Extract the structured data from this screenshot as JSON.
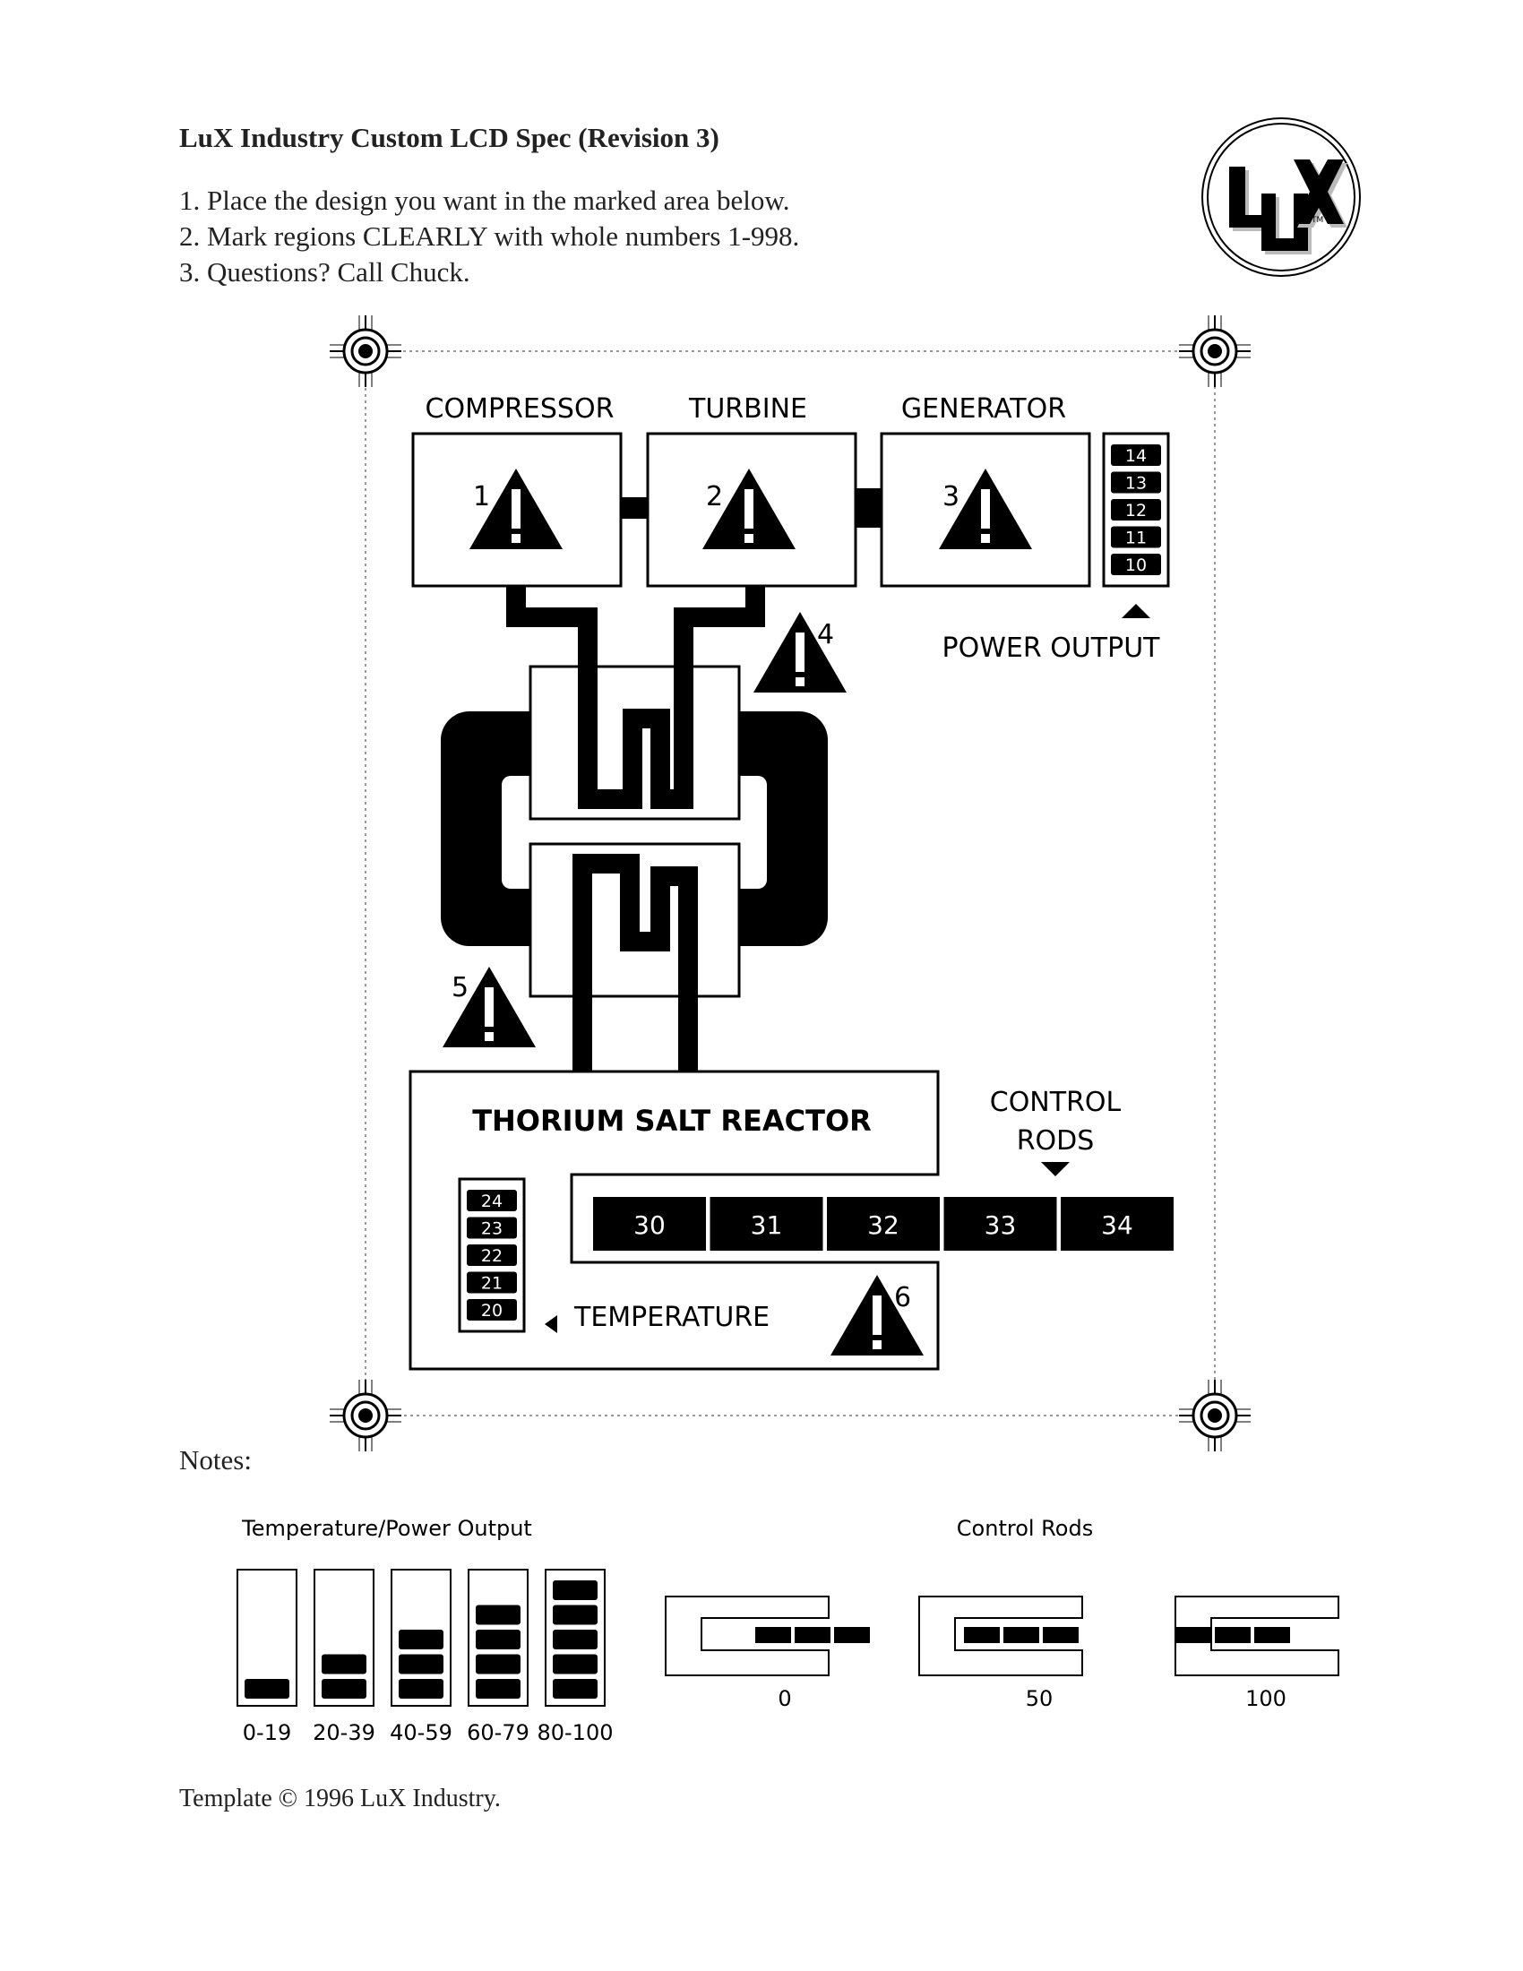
{
  "header": {
    "title": "LuX Industry Custom LCD Spec (Revision 3)",
    "steps": [
      "1. Place the design you want in the marked area below.",
      "2. Mark regions CLEARLY with whole numbers 1-998.",
      "3. Questions? Call Chuck."
    ],
    "logo_text": "LUX",
    "logo_tm": "TM"
  },
  "lcd": {
    "compressor": {
      "label": "COMPRESSOR",
      "region": "1"
    },
    "turbine": {
      "label": "TURBINE",
      "region": "2"
    },
    "generator": {
      "label": "GENERATOR",
      "region": "3"
    },
    "warning_4": "4",
    "warning_5": "5",
    "warning_6": "6",
    "power_output": {
      "label": "POWER OUTPUT",
      "segments": [
        "14",
        "13",
        "12",
        "11",
        "10"
      ]
    },
    "reactor_label": "THORIUM SALT REACTOR",
    "control_rods": {
      "label_line1": "CONTROL",
      "label_line2": "RODS",
      "segments": [
        "30",
        "31",
        "32",
        "33",
        "34"
      ]
    },
    "temperature": {
      "label": "TEMPERATURE",
      "segments": [
        "24",
        "23",
        "22",
        "21",
        "20"
      ]
    }
  },
  "notes": {
    "label": "Notes:",
    "temp_power": {
      "title": "Temperature/Power Output",
      "levels": [
        {
          "range": "0-19",
          "bars": 1
        },
        {
          "range": "20-39",
          "bars": 2
        },
        {
          "range": "40-59",
          "bars": 3
        },
        {
          "range": "60-79",
          "bars": 4
        },
        {
          "range": "80-100",
          "bars": 5
        }
      ]
    },
    "control_rods": {
      "title": "Control Rods",
      "states": [
        {
          "value": "0",
          "insertion": 0
        },
        {
          "value": "50",
          "insertion": 50
        },
        {
          "value": "100",
          "insertion": 100
        }
      ]
    }
  },
  "footer": "Template © 1996 LuX Industry."
}
